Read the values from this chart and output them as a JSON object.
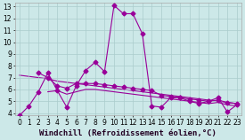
{
  "background_color": "#cce8e8",
  "grid_color": "#aacccc",
  "line_color": "#990099",
  "xlim": [
    -0.5,
    23.5
  ],
  "ylim": [
    3.8,
    13.3
  ],
  "xtick_labels": [
    "0",
    "1",
    "2",
    "3",
    "4",
    "5",
    "6",
    "7",
    "8",
    "9",
    "10",
    "11",
    "12",
    "13",
    "14",
    "15",
    "16",
    "17",
    "18",
    "19",
    "20",
    "21",
    "22",
    "23"
  ],
  "ytick_labels": [
    "4",
    "5",
    "6",
    "7",
    "8",
    "9",
    "10",
    "11",
    "12",
    "13"
  ],
  "ytick_vals": [
    4,
    5,
    6,
    7,
    8,
    9,
    10,
    11,
    12,
    13
  ],
  "xlabel": "Windchill (Refroidissement éolien,°C)",
  "xlabel_fontsize": 6.5,
  "tick_fontsize": 5.5,
  "lw": 0.8,
  "ms": 2.5,
  "series1": [
    3.8,
    4.6,
    5.8,
    7.4,
    5.9,
    4.5,
    6.3,
    7.6,
    8.3,
    7.5,
    13.1,
    12.4,
    12.4,
    10.7,
    4.6,
    4.5,
    5.3,
    5.3,
    5.0,
    4.8,
    5.0,
    5.3,
    4.1,
    4.7
  ],
  "series2_x": [
    2,
    3,
    4,
    5,
    6,
    7,
    8,
    9,
    10,
    11,
    12,
    13,
    14,
    15,
    16,
    17,
    18,
    19,
    20,
    21,
    22,
    23
  ],
  "series2_y": [
    7.4,
    7.0,
    6.3,
    6.1,
    6.5,
    6.5,
    6.5,
    6.4,
    6.3,
    6.2,
    6.1,
    6.0,
    5.9,
    5.5,
    5.4,
    5.3,
    5.2,
    5.1,
    5.0,
    5.1,
    4.9,
    4.8
  ],
  "series3_x": [
    0,
    1,
    2,
    3,
    4,
    5,
    6,
    7,
    8,
    9,
    10,
    11,
    12,
    13,
    14,
    15,
    16,
    17,
    18,
    19,
    20,
    21,
    22,
    23
  ],
  "series3_y": [
    7.2,
    7.1,
    7.0,
    6.9,
    6.7,
    6.6,
    6.5,
    6.4,
    6.3,
    6.2,
    6.1,
    6.0,
    5.9,
    5.8,
    5.7,
    5.6,
    5.5,
    5.4,
    5.3,
    5.2,
    5.1,
    5.0,
    4.9,
    4.8
  ],
  "series4_x": [
    3,
    4,
    5,
    6,
    7,
    8,
    9,
    10,
    11,
    12,
    13,
    14,
    15,
    16,
    17,
    18,
    19,
    20,
    21,
    22,
    23
  ],
  "series4_y": [
    5.8,
    5.9,
    5.6,
    5.8,
    6.0,
    6.0,
    5.9,
    5.8,
    5.7,
    5.6,
    5.5,
    5.4,
    5.3,
    5.2,
    5.1,
    5.0,
    4.9,
    4.8,
    4.9,
    4.7,
    4.6
  ]
}
